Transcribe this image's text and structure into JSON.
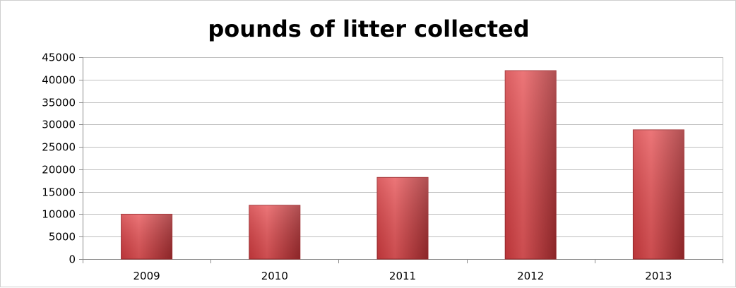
{
  "chart_data": {
    "type": "bar",
    "title": "pounds of litter collected",
    "categories": [
      "2009",
      "2010",
      "2011",
      "2012",
      "2013"
    ],
    "values": [
      10000,
      12000,
      18200,
      42000,
      28800
    ],
    "ylim": [
      0,
      45000
    ],
    "yticks": [
      0,
      5000,
      10000,
      15000,
      20000,
      25000,
      30000,
      35000,
      40000,
      45000
    ],
    "xlabel": "",
    "ylabel": "",
    "grid": true,
    "legend": "none",
    "colors": {
      "bar_light": "#e8585b",
      "bar_mid": "#d23c40",
      "bar_dark": "#9e2a2d",
      "gridline": "#bfbfbf",
      "axis": "#8c8c8c"
    }
  }
}
